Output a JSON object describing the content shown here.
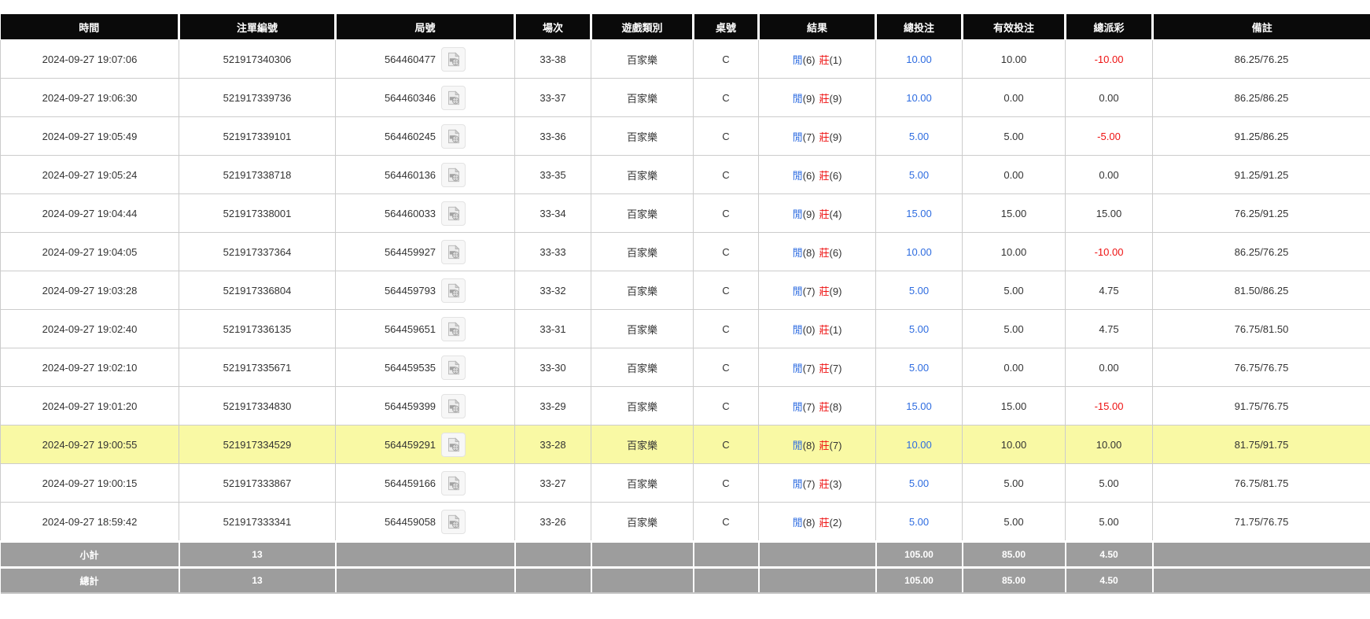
{
  "colors": {
    "header_bg": "#0a0a0a",
    "header_text": "#ffffff",
    "row_border": "#cccccc",
    "highlight_row_bg": "#f9f9a4",
    "footer_bg": "#9d9d9d",
    "footer_text": "#ffffff",
    "bet_amount_blue": "#2e6ce0",
    "player_label_blue": "#2e6ce0",
    "banker_label_red": "#ee1111",
    "negative_payout_red": "#ee1111",
    "body_text": "#333333"
  },
  "table": {
    "columns": [
      {
        "key": "time",
        "label": "時間"
      },
      {
        "key": "bet_id",
        "label": "注單編號"
      },
      {
        "key": "round_no",
        "label": "局號"
      },
      {
        "key": "session",
        "label": "場次"
      },
      {
        "key": "game_type",
        "label": "遊戲類別"
      },
      {
        "key": "table_no",
        "label": "桌號"
      },
      {
        "key": "result",
        "label": "結果"
      },
      {
        "key": "total_bet",
        "label": "總投注"
      },
      {
        "key": "valid_bet",
        "label": "有效投注"
      },
      {
        "key": "payout",
        "label": "總派彩"
      },
      {
        "key": "remark",
        "label": "備註"
      }
    ],
    "video_icon_name": "video-replay-icon",
    "rows": [
      {
        "time": "2024-09-27 19:07:06",
        "bet_id": "521917340306",
        "round_no": "564460477",
        "session": "33-38",
        "game_type": "百家樂",
        "table_no": "C",
        "result": {
          "player_label": "閒",
          "player_score": "(6)",
          "banker_label": "莊",
          "banker_score": "(1)"
        },
        "total_bet": "10.00",
        "valid_bet": "10.00",
        "payout": "-10.00",
        "remark": "86.25/76.25",
        "highlighted": false
      },
      {
        "time": "2024-09-27 19:06:30",
        "bet_id": "521917339736",
        "round_no": "564460346",
        "session": "33-37",
        "game_type": "百家樂",
        "table_no": "C",
        "result": {
          "player_label": "閒",
          "player_score": "(9)",
          "banker_label": "莊",
          "banker_score": "(9)"
        },
        "total_bet": "10.00",
        "valid_bet": "0.00",
        "payout": "0.00",
        "remark": "86.25/86.25",
        "highlighted": false
      },
      {
        "time": "2024-09-27 19:05:49",
        "bet_id": "521917339101",
        "round_no": "564460245",
        "session": "33-36",
        "game_type": "百家樂",
        "table_no": "C",
        "result": {
          "player_label": "閒",
          "player_score": "(7)",
          "banker_label": "莊",
          "banker_score": "(9)"
        },
        "total_bet": "5.00",
        "valid_bet": "5.00",
        "payout": "-5.00",
        "remark": "91.25/86.25",
        "highlighted": false
      },
      {
        "time": "2024-09-27 19:05:24",
        "bet_id": "521917338718",
        "round_no": "564460136",
        "session": "33-35",
        "game_type": "百家樂",
        "table_no": "C",
        "result": {
          "player_label": "閒",
          "player_score": "(6)",
          "banker_label": "莊",
          "banker_score": "(6)"
        },
        "total_bet": "5.00",
        "valid_bet": "0.00",
        "payout": "0.00",
        "remark": "91.25/91.25",
        "highlighted": false
      },
      {
        "time": "2024-09-27 19:04:44",
        "bet_id": "521917338001",
        "round_no": "564460033",
        "session": "33-34",
        "game_type": "百家樂",
        "table_no": "C",
        "result": {
          "player_label": "閒",
          "player_score": "(9)",
          "banker_label": "莊",
          "banker_score": "(4)"
        },
        "total_bet": "15.00",
        "valid_bet": "15.00",
        "payout": "15.00",
        "remark": "76.25/91.25",
        "highlighted": false
      },
      {
        "time": "2024-09-27 19:04:05",
        "bet_id": "521917337364",
        "round_no": "564459927",
        "session": "33-33",
        "game_type": "百家樂",
        "table_no": "C",
        "result": {
          "player_label": "閒",
          "player_score": "(8)",
          "banker_label": "莊",
          "banker_score": "(6)"
        },
        "total_bet": "10.00",
        "valid_bet": "10.00",
        "payout": "-10.00",
        "remark": "86.25/76.25",
        "highlighted": false
      },
      {
        "time": "2024-09-27 19:03:28",
        "bet_id": "521917336804",
        "round_no": "564459793",
        "session": "33-32",
        "game_type": "百家樂",
        "table_no": "C",
        "result": {
          "player_label": "閒",
          "player_score": "(7)",
          "banker_label": "莊",
          "banker_score": "(9)"
        },
        "total_bet": "5.00",
        "valid_bet": "5.00",
        "payout": "4.75",
        "remark": "81.50/86.25",
        "highlighted": false
      },
      {
        "time": "2024-09-27 19:02:40",
        "bet_id": "521917336135",
        "round_no": "564459651",
        "session": "33-31",
        "game_type": "百家樂",
        "table_no": "C",
        "result": {
          "player_label": "閒",
          "player_score": "(0)",
          "banker_label": "莊",
          "banker_score": "(1)"
        },
        "total_bet": "5.00",
        "valid_bet": "5.00",
        "payout": "4.75",
        "remark": "76.75/81.50",
        "highlighted": false
      },
      {
        "time": "2024-09-27 19:02:10",
        "bet_id": "521917335671",
        "round_no": "564459535",
        "session": "33-30",
        "game_type": "百家樂",
        "table_no": "C",
        "result": {
          "player_label": "閒",
          "player_score": "(7)",
          "banker_label": "莊",
          "banker_score": "(7)"
        },
        "total_bet": "5.00",
        "valid_bet": "0.00",
        "payout": "0.00",
        "remark": "76.75/76.75",
        "highlighted": false
      },
      {
        "time": "2024-09-27 19:01:20",
        "bet_id": "521917334830",
        "round_no": "564459399",
        "session": "33-29",
        "game_type": "百家樂",
        "table_no": "C",
        "result": {
          "player_label": "閒",
          "player_score": "(7)",
          "banker_label": "莊",
          "banker_score": "(8)"
        },
        "total_bet": "15.00",
        "valid_bet": "15.00",
        "payout": "-15.00",
        "remark": "91.75/76.75",
        "highlighted": false
      },
      {
        "time": "2024-09-27 19:00:55",
        "bet_id": "521917334529",
        "round_no": "564459291",
        "session": "33-28",
        "game_type": "百家樂",
        "table_no": "C",
        "result": {
          "player_label": "閒",
          "player_score": "(8)",
          "banker_label": "莊",
          "banker_score": "(7)"
        },
        "total_bet": "10.00",
        "valid_bet": "10.00",
        "payout": "10.00",
        "remark": "81.75/91.75",
        "highlighted": true
      },
      {
        "time": "2024-09-27 19:00:15",
        "bet_id": "521917333867",
        "round_no": "564459166",
        "session": "33-27",
        "game_type": "百家樂",
        "table_no": "C",
        "result": {
          "player_label": "閒",
          "player_score": "(7)",
          "banker_label": "莊",
          "banker_score": "(3)"
        },
        "total_bet": "5.00",
        "valid_bet": "5.00",
        "payout": "5.00",
        "remark": "76.75/81.75",
        "highlighted": false
      },
      {
        "time": "2024-09-27 18:59:42",
        "bet_id": "521917333341",
        "round_no": "564459058",
        "session": "33-26",
        "game_type": "百家樂",
        "table_no": "C",
        "result": {
          "player_label": "閒",
          "player_score": "(8)",
          "banker_label": "莊",
          "banker_score": "(2)"
        },
        "total_bet": "5.00",
        "valid_bet": "5.00",
        "payout": "5.00",
        "remark": "71.75/76.75",
        "highlighted": false
      }
    ],
    "footer_rows": [
      {
        "label": "小計",
        "count": "13",
        "total_bet": "105.00",
        "valid_bet": "85.00",
        "payout": "4.50"
      },
      {
        "label": "總計",
        "count": "13",
        "total_bet": "105.00",
        "valid_bet": "85.00",
        "payout": "4.50"
      }
    ]
  }
}
